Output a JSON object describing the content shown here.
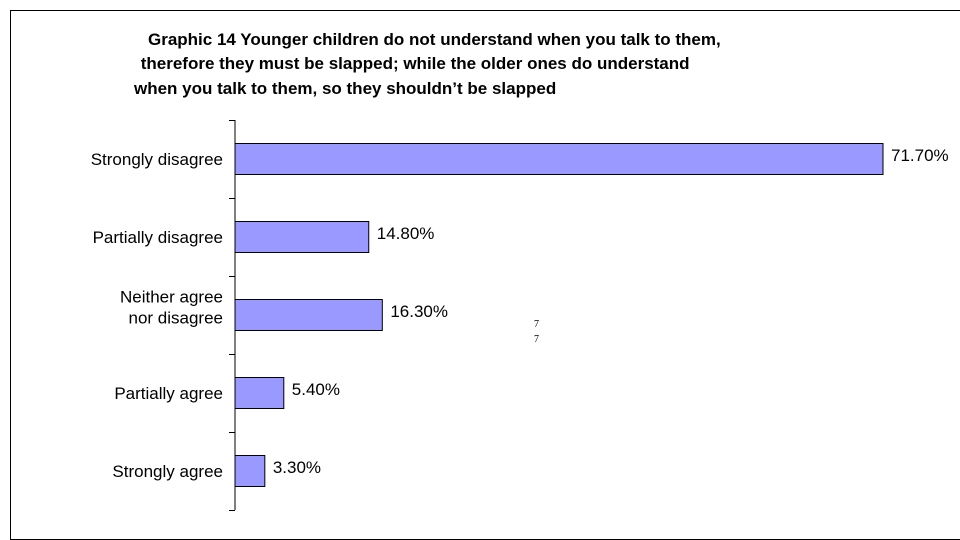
{
  "chart_data": {
    "type": "bar",
    "orientation": "horizontal",
    "title": "Graphic 14  Younger children do not understand when you talk to them,  therefore they must be slapped; while the older ones do understand when you talk to them, so they shouldn’t be slapped",
    "title_lines": [
      "Graphic 14  Younger children do not understand when you talk to them,",
      " therefore they must be slapped; while the older ones do understand",
      "when you talk to them, so they shouldn’t be slapped"
    ],
    "categories": [
      "Strongly disagree",
      "Partially disagree",
      "Neither agree nor disagree",
      "Partially agree",
      "Strongly agree"
    ],
    "category_lines": [
      [
        "Strongly disagree"
      ],
      [
        "Partially disagree"
      ],
      [
        "Neither agree",
        "nor disagree"
      ],
      [
        "Partially agree"
      ],
      [
        "Strongly agree"
      ]
    ],
    "values": [
      71.7,
      14.8,
      16.3,
      5.4,
      3.3
    ],
    "value_labels": [
      "71.70%",
      "14.80%",
      "16.30%",
      "5.40%",
      "3.30%"
    ],
    "xlim": [
      0,
      75
    ],
    "grid": false,
    "legend": "none",
    "bar_color": "#9999ff",
    "bar_edge_color": "#000000",
    "stray_marks": [
      "7",
      "7"
    ]
  }
}
